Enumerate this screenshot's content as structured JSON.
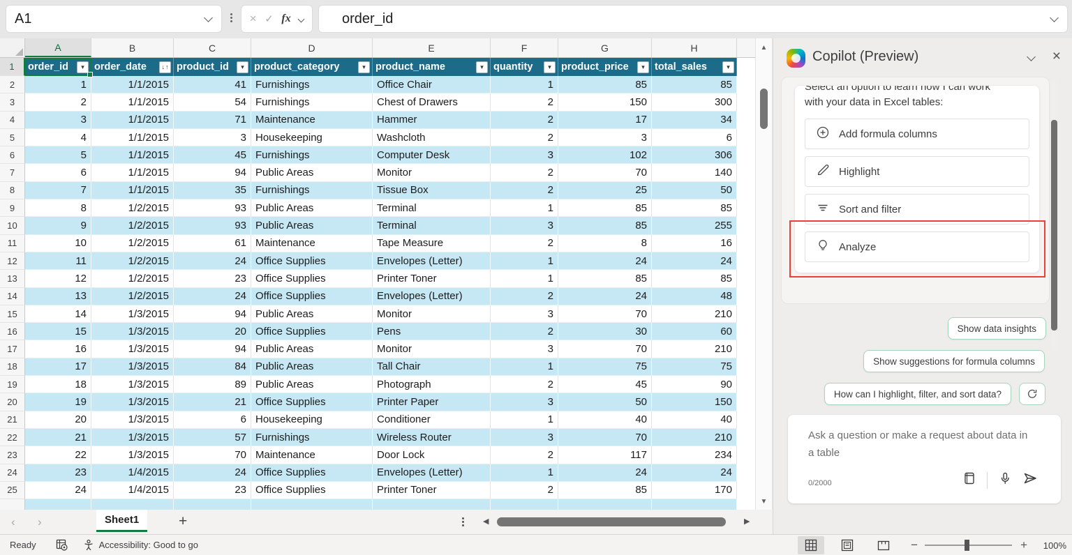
{
  "formula_bar": {
    "name_box": "A1",
    "formula": "order_id"
  },
  "sheet": {
    "column_letters": [
      "A",
      "B",
      "C",
      "D",
      "E",
      "F",
      "G",
      "H"
    ],
    "selected_cell": "A1",
    "selected_column": "A",
    "selected_row": "1",
    "headers": [
      "order_id",
      "order_date",
      "product_id",
      "product_category",
      "product_name",
      "quantity",
      "product_price",
      "total_sales"
    ],
    "sorted_header": "order_date",
    "rows": [
      [
        "1",
        "1/1/2015",
        "41",
        "Furnishings",
        "Office Chair",
        "1",
        "85",
        "85"
      ],
      [
        "2",
        "1/1/2015",
        "54",
        "Furnishings",
        "Chest of Drawers",
        "2",
        "150",
        "300"
      ],
      [
        "3",
        "1/1/2015",
        "71",
        "Maintenance",
        "Hammer",
        "2",
        "17",
        "34"
      ],
      [
        "4",
        "1/1/2015",
        "3",
        "Housekeeping",
        "Washcloth",
        "2",
        "3",
        "6"
      ],
      [
        "5",
        "1/1/2015",
        "45",
        "Furnishings",
        "Computer Desk",
        "3",
        "102",
        "306"
      ],
      [
        "6",
        "1/1/2015",
        "94",
        "Public Areas",
        "Monitor",
        "2",
        "70",
        "140"
      ],
      [
        "7",
        "1/1/2015",
        "35",
        "Furnishings",
        "Tissue Box",
        "2",
        "25",
        "50"
      ],
      [
        "8",
        "1/2/2015",
        "93",
        "Public Areas",
        "Terminal",
        "1",
        "85",
        "85"
      ],
      [
        "9",
        "1/2/2015",
        "93",
        "Public Areas",
        "Terminal",
        "3",
        "85",
        "255"
      ],
      [
        "10",
        "1/2/2015",
        "61",
        "Maintenance",
        "Tape Measure",
        "2",
        "8",
        "16"
      ],
      [
        "11",
        "1/2/2015",
        "24",
        "Office Supplies",
        "Envelopes (Letter)",
        "1",
        "24",
        "24"
      ],
      [
        "12",
        "1/2/2015",
        "23",
        "Office Supplies",
        "Printer Toner",
        "1",
        "85",
        "85"
      ],
      [
        "13",
        "1/2/2015",
        "24",
        "Office Supplies",
        "Envelopes (Letter)",
        "2",
        "24",
        "48"
      ],
      [
        "14",
        "1/3/2015",
        "94",
        "Public Areas",
        "Monitor",
        "3",
        "70",
        "210"
      ],
      [
        "15",
        "1/3/2015",
        "20",
        "Office Supplies",
        "Pens",
        "2",
        "30",
        "60"
      ],
      [
        "16",
        "1/3/2015",
        "94",
        "Public Areas",
        "Monitor",
        "3",
        "70",
        "210"
      ],
      [
        "17",
        "1/3/2015",
        "84",
        "Public Areas",
        "Tall Chair",
        "1",
        "75",
        "75"
      ],
      [
        "18",
        "1/3/2015",
        "89",
        "Public Areas",
        "Photograph",
        "2",
        "45",
        "90"
      ],
      [
        "19",
        "1/3/2015",
        "21",
        "Office Supplies",
        "Printer Paper",
        "3",
        "50",
        "150"
      ],
      [
        "20",
        "1/3/2015",
        "6",
        "Housekeeping",
        "Conditioner",
        "1",
        "40",
        "40"
      ],
      [
        "21",
        "1/3/2015",
        "57",
        "Furnishings",
        "Wireless Router",
        "3",
        "70",
        "210"
      ],
      [
        "22",
        "1/3/2015",
        "70",
        "Maintenance",
        "Door Lock",
        "2",
        "117",
        "234"
      ],
      [
        "23",
        "1/4/2015",
        "24",
        "Office Supplies",
        "Envelopes (Letter)",
        "1",
        "24",
        "24"
      ],
      [
        "24",
        "1/4/2015",
        "23",
        "Office Supplies",
        "Printer Toner",
        "2",
        "85",
        "170"
      ]
    ]
  },
  "sheet_tabs": {
    "active": "Sheet1",
    "add_label": "+"
  },
  "status_bar": {
    "ready": "Ready",
    "accessibility": "Accessibility: Good to go",
    "zoom_level": "100%"
  },
  "copilot": {
    "title": "Copilot (Preview)",
    "intro_line1": "Select an option to learn how I can work",
    "intro_line2": "with your data in Excel tables:",
    "options": [
      {
        "icon": "plus-circle-icon",
        "label": "Add formula columns"
      },
      {
        "icon": "pen-icon",
        "label": "Highlight"
      },
      {
        "icon": "filter-lines-icon",
        "label": "Sort and filter"
      },
      {
        "icon": "lightbulb-icon",
        "label": "Analyze"
      }
    ],
    "highlighted_option": "Analyze",
    "chips": [
      "Show data insights",
      "Show suggestions for formula columns",
      "How can I highlight, filter, and sort data?"
    ],
    "input": {
      "placeholder": "Ask a question or make a request about data in a table",
      "counter": "0/2000"
    }
  },
  "colors": {
    "table_header_bg": "#1c6b89",
    "band_blue": "#c6e8f5",
    "selection_green": "#107c41",
    "highlight_red": "#ec4034",
    "chip_border_green": "#a3d7b8"
  }
}
